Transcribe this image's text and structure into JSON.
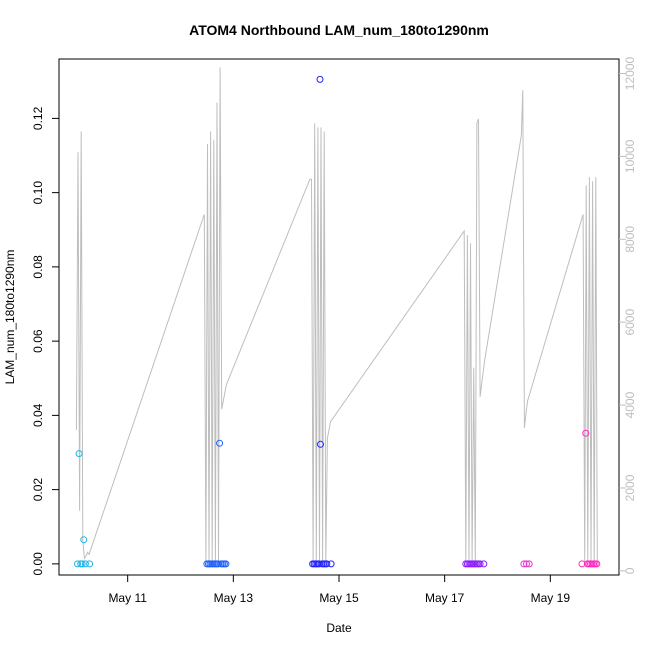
{
  "chart_data": {
    "type": "scatter",
    "title": "ATOM4 Northbound LAM_num_180to1290nm",
    "xlabel": "Date",
    "ylabel": "LAM_num_180to1290nm",
    "xlim": [
      9.7,
      20.3
    ],
    "ylim": [
      -0.003,
      0.136
    ],
    "y2lim": [
      -100,
      12350
    ],
    "grid": false,
    "x_ticks": [
      {
        "value": 11,
        "label": "May 11"
      },
      {
        "value": 13,
        "label": "May 13"
      },
      {
        "value": 15,
        "label": "May 15"
      },
      {
        "value": 17,
        "label": "May 17"
      },
      {
        "value": 19,
        "label": "May 19"
      }
    ],
    "y_ticks": [
      {
        "value": 0.0,
        "label": "0.00"
      },
      {
        "value": 0.02,
        "label": "0.02"
      },
      {
        "value": 0.04,
        "label": "0.04"
      },
      {
        "value": 0.06,
        "label": "0.06"
      },
      {
        "value": 0.08,
        "label": "0.08"
      },
      {
        "value": 0.1,
        "label": "0.10"
      },
      {
        "value": 0.12,
        "label": "0.12"
      }
    ],
    "y2_ticks": [
      {
        "value": 0,
        "label": "0"
      },
      {
        "value": 2000,
        "label": "2000"
      },
      {
        "value": 4000,
        "label": "4000"
      },
      {
        "value": 6000,
        "label": "6000"
      },
      {
        "value": 8000,
        "label": "8000"
      },
      {
        "value": 10000,
        "label": "10000"
      },
      {
        "value": 12000,
        "label": "12000"
      }
    ],
    "points": [
      {
        "x": 10.05,
        "y": 0.0,
        "color": "#22b5e6"
      },
      {
        "x": 10.08,
        "y": 0.0297,
        "color": "#22b5e6"
      },
      {
        "x": 10.11,
        "y": 0.0,
        "color": "#22b5e6"
      },
      {
        "x": 10.14,
        "y": 0.0,
        "color": "#22b5e6"
      },
      {
        "x": 10.17,
        "y": 0.0065,
        "color": "#22b5e6"
      },
      {
        "x": 10.2,
        "y": 0.0,
        "color": "#22b5e6"
      },
      {
        "x": 10.28,
        "y": 0.0,
        "color": "#22b5e6"
      },
      {
        "x": 12.5,
        "y": 0.0,
        "color": "#1f5fff"
      },
      {
        "x": 12.53,
        "y": 0.0,
        "color": "#1f5fff"
      },
      {
        "x": 12.56,
        "y": 0.0,
        "color": "#1f5fff"
      },
      {
        "x": 12.59,
        "y": 0.0,
        "color": "#1f5fff"
      },
      {
        "x": 12.62,
        "y": 0.0,
        "color": "#1f5fff"
      },
      {
        "x": 12.65,
        "y": 0.0,
        "color": "#1f5fff"
      },
      {
        "x": 12.68,
        "y": 0.0,
        "color": "#1f5fff"
      },
      {
        "x": 12.71,
        "y": 0.0,
        "color": "#1f5fff"
      },
      {
        "x": 12.74,
        "y": 0.0325,
        "color": "#1f5fff"
      },
      {
        "x": 12.77,
        "y": 0.0,
        "color": "#1f5fff"
      },
      {
        "x": 12.8,
        "y": 0.0,
        "color": "#1f5fff"
      },
      {
        "x": 12.83,
        "y": 0.0,
        "color": "#1f5fff"
      },
      {
        "x": 12.86,
        "y": 0.0,
        "color": "#1f5fff"
      },
      {
        "x": 14.5,
        "y": 0.0,
        "color": "#2222ff"
      },
      {
        "x": 14.53,
        "y": 0.0,
        "color": "#2222ff"
      },
      {
        "x": 14.56,
        "y": 0.0,
        "color": "#2222ff"
      },
      {
        "x": 14.59,
        "y": 0.0,
        "color": "#2222ff"
      },
      {
        "x": 14.62,
        "y": 0.0,
        "color": "#2222ff"
      },
      {
        "x": 14.64,
        "y": 0.1305,
        "color": "#2222ff"
      },
      {
        "x": 14.65,
        "y": 0.0322,
        "color": "#2222ff"
      },
      {
        "x": 14.68,
        "y": 0.0,
        "color": "#2222ff"
      },
      {
        "x": 14.71,
        "y": 0.0,
        "color": "#2222ff"
      },
      {
        "x": 14.74,
        "y": 0.0,
        "color": "#2222ff"
      },
      {
        "x": 14.77,
        "y": 0.0,
        "color": "#2222ff"
      },
      {
        "x": 14.85,
        "y": 0.0,
        "color": "#2222ff"
      },
      {
        "x": 17.4,
        "y": 0.0,
        "color": "#8a1fff"
      },
      {
        "x": 17.43,
        "y": 0.0,
        "color": "#8a1fff"
      },
      {
        "x": 17.46,
        "y": 0.0,
        "color": "#8a1fff"
      },
      {
        "x": 17.49,
        "y": 0.0,
        "color": "#8a1fff"
      },
      {
        "x": 17.52,
        "y": 0.0,
        "color": "#8a1fff"
      },
      {
        "x": 17.55,
        "y": 0.0,
        "color": "#8a1fff"
      },
      {
        "x": 17.58,
        "y": 0.0,
        "color": "#8a1fff"
      },
      {
        "x": 17.61,
        "y": 0.0,
        "color": "#8a1fff"
      },
      {
        "x": 17.64,
        "y": 0.0,
        "color": "#8a1fff"
      },
      {
        "x": 17.67,
        "y": 0.0,
        "color": "#8a1fff"
      },
      {
        "x": 17.74,
        "y": 0.0,
        "color": "#8a1fff"
      },
      {
        "x": 18.5,
        "y": 0.0,
        "color": "#e63ad0"
      },
      {
        "x": 18.55,
        "y": 0.0,
        "color": "#e63ad0"
      },
      {
        "x": 18.6,
        "y": 0.0,
        "color": "#e63ad0"
      },
      {
        "x": 19.6,
        "y": 0.0,
        "color": "#ff2fc0"
      },
      {
        "x": 19.67,
        "y": 0.0352,
        "color": "#ff2fc0"
      },
      {
        "x": 19.7,
        "y": 0.0,
        "color": "#ff2fc0"
      },
      {
        "x": 19.73,
        "y": 0.0,
        "color": "#ff2fc0"
      },
      {
        "x": 19.76,
        "y": 0.0,
        "color": "#ff2fc0"
      },
      {
        "x": 19.79,
        "y": 0.0,
        "color": "#ff2fc0"
      },
      {
        "x": 19.82,
        "y": 0.0,
        "color": "#ff2fc0"
      },
      {
        "x": 19.85,
        "y": 0.0,
        "color": "#ff2fc0"
      },
      {
        "x": 19.88,
        "y": 0.0,
        "color": "#ff2fc0"
      }
    ],
    "secondary_line": {
      "color": "#bebebe",
      "x": [
        10.03,
        10.06,
        10.09,
        10.12,
        10.15,
        10.18,
        10.21,
        10.24,
        10.27,
        12.45,
        12.48,
        12.51,
        12.54,
        12.57,
        12.6,
        12.63,
        12.66,
        12.69,
        12.72,
        12.75,
        12.78,
        12.81,
        12.84,
        12.87,
        14.45,
        14.48,
        14.51,
        14.54,
        14.57,
        14.6,
        14.63,
        14.66,
        14.69,
        14.72,
        14.75,
        14.78,
        14.81,
        14.84,
        17.37,
        17.4,
        17.43,
        17.46,
        17.49,
        17.52,
        17.55,
        17.58,
        17.61,
        17.64,
        17.67,
        17.7,
        17.73,
        17.76,
        18.45,
        18.48,
        18.51,
        18.54,
        18.57,
        19.62,
        19.65,
        19.68,
        19.71,
        19.74,
        19.77,
        19.8,
        19.83,
        19.86,
        19.89
      ],
      "y": [
        3400,
        10100,
        1450,
        10600,
        750,
        300,
        350,
        450,
        400,
        8600,
        200,
        10300,
        200,
        10600,
        200,
        10400,
        150,
        11300,
        200,
        12150,
        3900,
        4100,
        4300,
        4500,
        9450,
        9450,
        200,
        10800,
        200,
        10700,
        200,
        10700,
        200,
        10600,
        200,
        3200,
        3400,
        3600,
        8200,
        200,
        8100,
        200,
        7900,
        200,
        4900,
        200,
        10800,
        10900,
        4200,
        4500,
        4800,
        5100,
        10500,
        11600,
        3450,
        3800,
        4100,
        8600,
        200,
        9300,
        200,
        9500,
        200,
        9400,
        200,
        9500,
        200
      ]
    }
  }
}
